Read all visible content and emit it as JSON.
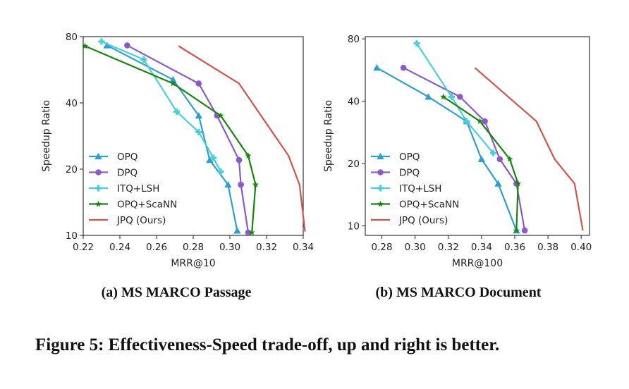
{
  "chart_data": [
    {
      "type": "line",
      "panel": "a",
      "xlabel": "MRR@10",
      "ylabel": "Speedup Ratio",
      "xlim": [
        0.22,
        0.34
      ],
      "xticks": [
        0.22,
        0.24,
        0.26,
        0.28,
        0.3,
        0.32,
        0.34
      ],
      "xtick_labels": [
        "0.22",
        "0.24",
        "0.26",
        "0.28",
        "0.30",
        "0.32",
        "0.34"
      ],
      "yscale": "log",
      "ylim": [
        10,
        80
      ],
      "yticks": [
        10,
        20,
        40,
        80
      ],
      "ytick_labels": [
        "10",
        "20",
        "40",
        "80"
      ],
      "legend_position": "lower-left",
      "series": [
        {
          "name": "OPQ",
          "color": "#2e9fcf",
          "marker": "triangle",
          "x": [
            0.233,
            0.269,
            0.283,
            0.289,
            0.299,
            0.304
          ],
          "y": [
            73,
            51,
            35,
            22,
            17,
            10.5
          ]
        },
        {
          "name": "DPQ",
          "color": "#8c5ac8",
          "marker": "circle",
          "x": [
            0.244,
            0.283,
            0.293,
            0.305,
            0.306,
            0.31
          ],
          "y": [
            73,
            49,
            35,
            22,
            17,
            10.3
          ]
        },
        {
          "name": "ITQ+LSH",
          "color": "#48cfdc",
          "marker": "plus",
          "x": [
            0.23,
            0.253,
            0.271,
            0.283,
            0.291,
            0.295
          ],
          "y": [
            76,
            63,
            36.5,
            29.5,
            22.5,
            19.5
          ]
        },
        {
          "name": "OPQ+ScaNN",
          "color": "#16860f",
          "marker": "star",
          "x": [
            0.221,
            0.269,
            0.295,
            0.31,
            0.314,
            0.312
          ],
          "y": [
            72.5,
            49,
            35,
            23,
            17,
            10.3
          ]
        },
        {
          "name": "JPQ (Ours)",
          "color": "#d1544a",
          "marker": "none",
          "x": [
            0.272,
            0.305,
            0.317,
            0.332,
            0.338,
            0.341
          ],
          "y": [
            72.5,
            49,
            35,
            23,
            17,
            10.4
          ]
        }
      ]
    },
    {
      "type": "line",
      "panel": "b",
      "xlabel": "MRR@100",
      "ylabel": "Speedup Ratio",
      "xlim": [
        0.27,
        0.405
      ],
      "xticks": [
        0.28,
        0.3,
        0.32,
        0.34,
        0.36,
        0.38,
        0.4
      ],
      "xtick_labels": [
        "0.28",
        "0.30",
        "0.32",
        "0.34",
        "0.36",
        "0.38",
        "0.40"
      ],
      "yscale": "log",
      "ylim": [
        9,
        82
      ],
      "yticks": [
        10,
        20,
        40,
        80
      ],
      "ytick_labels": [
        "10",
        "20",
        "40",
        "80"
      ],
      "legend_position": "lower-left",
      "series": [
        {
          "name": "OPQ",
          "color": "#2e9fcf",
          "marker": "triangle",
          "x": [
            0.277,
            0.308,
            0.331,
            0.34,
            0.35,
            0.361
          ],
          "y": [
            58,
            42,
            32,
            21,
            16,
            9.5
          ]
        },
        {
          "name": "DPQ",
          "color": "#8c5ac8",
          "marker": "circle",
          "x": [
            0.293,
            0.327,
            0.342,
            0.351,
            0.361,
            0.366
          ],
          "y": [
            58,
            42,
            32,
            21,
            16,
            9.5
          ]
        },
        {
          "name": "ITQ+LSH",
          "color": "#48cfdc",
          "marker": "plus",
          "x": [
            0.301,
            0.322,
            0.331,
            0.347
          ],
          "y": [
            76,
            42,
            32,
            22.5
          ]
        },
        {
          "name": "OPQ+ScaNN",
          "color": "#16860f",
          "marker": "star",
          "x": [
            0.317,
            0.339,
            0.357,
            0.362,
            0.361
          ],
          "y": [
            42,
            32,
            21,
            16,
            9.5
          ]
        },
        {
          "name": "JPQ (Ours)",
          "color": "#d1544a",
          "marker": "none",
          "x": [
            0.336,
            0.373,
            0.384,
            0.396,
            0.401
          ],
          "y": [
            58,
            32,
            21,
            16,
            9.5
          ]
        }
      ]
    }
  ],
  "captions": {
    "a": "(a) MS MARCO Passage",
    "b": "(b) MS MARCO Document",
    "figure": "Figure 5: Effectiveness-Speed trade-off, up and right is better."
  }
}
